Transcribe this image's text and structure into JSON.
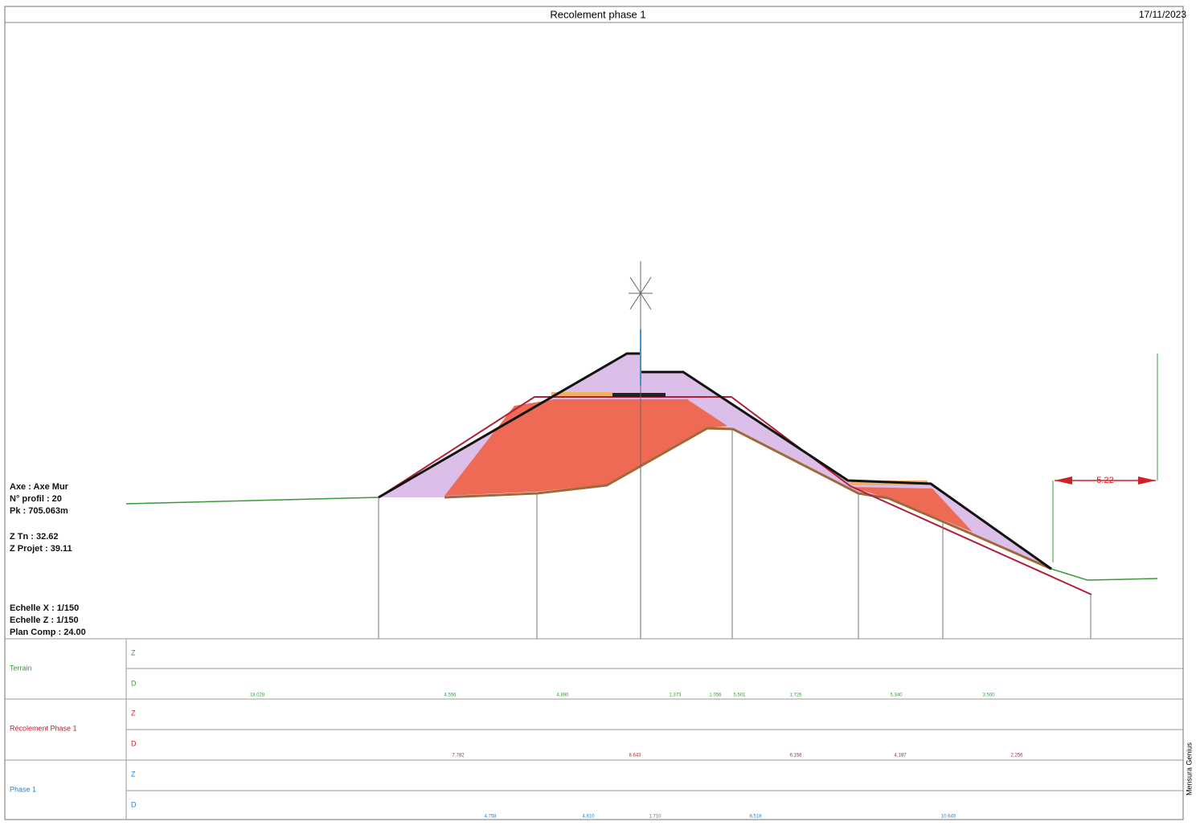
{
  "header": {
    "title": "Recolement phase 1",
    "date": "17/11/2023"
  },
  "info": {
    "axe": "Axe : Axe Mur",
    "profil": "N° profil : 20",
    "pk": "Pk : 705.063m",
    "z_tn": "Z Tn : 32.62",
    "z_projet": "Z Projet : 39.11",
    "echelle_x": "Echelle X : 1/150",
    "echelle_z": "Echelle Z : 1/150",
    "plan_comp": "Plan Comp : 24.00"
  },
  "dimension": "5.22",
  "side_label": "Mensura Genius",
  "table": {
    "rows": [
      {
        "name": "Terrain",
        "z": "Z",
        "d": "D",
        "distances": [
          "18.028",
          "4.556",
          "4.890",
          "1.373",
          "1.056",
          "5.501",
          "1.726",
          "5.340",
          "3.500"
        ]
      },
      {
        "name": "Récolement Phase 1",
        "z": "Z",
        "d": "D",
        "distances": [
          "7.782",
          "8.643",
          "6.158",
          "4.187",
          "2.256"
        ]
      },
      {
        "name": "Phase 1",
        "z": "Z",
        "d": "D",
        "distances": [
          "4.758",
          "4.810",
          "1.710",
          "8.518",
          "10.645"
        ]
      }
    ]
  }
}
